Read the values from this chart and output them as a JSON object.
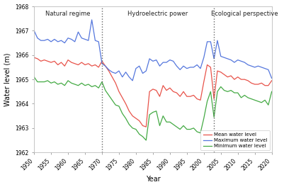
{
  "years": [
    1950,
    1951,
    1952,
    1953,
    1954,
    1955,
    1956,
    1957,
    1958,
    1959,
    1960,
    1961,
    1962,
    1963,
    1964,
    1965,
    1966,
    1967,
    1968,
    1969,
    1970,
    1971,
    1972,
    1973,
    1974,
    1975,
    1976,
    1977,
    1978,
    1979,
    1980,
    1981,
    1982,
    1983,
    1984,
    1985,
    1986,
    1987,
    1988,
    1989,
    1990,
    1991,
    1992,
    1993,
    1994,
    1995,
    1996,
    1997,
    1998,
    1999,
    2000,
    2001,
    2002,
    2003,
    2004,
    2005,
    2006,
    2007,
    2008,
    2009,
    2010,
    2011,
    2012,
    2013,
    2014,
    2015,
    2016,
    2017,
    2018,
    2019,
    2020
  ],
  "mean": [
    1965.9,
    1965.85,
    1965.75,
    1965.8,
    1965.75,
    1965.7,
    1965.75,
    1965.6,
    1965.7,
    1965.55,
    1965.8,
    1965.7,
    1965.65,
    1965.6,
    1965.7,
    1965.6,
    1965.65,
    1965.55,
    1965.6,
    1965.5,
    1965.75,
    1965.55,
    1965.35,
    1965.1,
    1964.85,
    1964.5,
    1964.25,
    1964.0,
    1963.7,
    1963.5,
    1963.4,
    1963.3,
    1963.1,
    1963.05,
    1964.5,
    1964.6,
    1964.55,
    1964.3,
    1964.75,
    1964.55,
    1964.65,
    1964.5,
    1964.45,
    1964.3,
    1964.5,
    1964.3,
    1964.3,
    1964.35,
    1964.2,
    1964.15,
    1964.9,
    1965.6,
    1965.5,
    1964.2,
    1965.35,
    1965.3,
    1965.2,
    1965.1,
    1965.15,
    1965.0,
    1965.1,
    1965.0,
    1965.0,
    1964.95,
    1964.85,
    1964.8,
    1964.8,
    1964.85,
    1964.75,
    1964.75,
    1964.95
  ],
  "maximum": [
    1967.0,
    1966.7,
    1966.6,
    1966.6,
    1966.65,
    1966.55,
    1966.65,
    1966.55,
    1966.6,
    1966.5,
    1966.7,
    1966.65,
    1966.55,
    1966.95,
    1966.7,
    1966.65,
    1966.6,
    1967.45,
    1966.6,
    1966.55,
    1965.65,
    1965.55,
    1965.4,
    1965.3,
    1965.25,
    1965.35,
    1965.1,
    1965.3,
    1965.1,
    1964.95,
    1965.45,
    1965.55,
    1965.25,
    1965.35,
    1965.85,
    1965.75,
    1965.8,
    1965.55,
    1965.7,
    1965.7,
    1965.8,
    1965.75,
    1965.55,
    1965.4,
    1965.55,
    1965.45,
    1965.5,
    1965.5,
    1965.6,
    1965.45,
    1965.9,
    1966.55,
    1966.55,
    1965.85,
    1966.6,
    1965.95,
    1965.9,
    1965.85,
    1965.8,
    1965.7,
    1965.8,
    1965.75,
    1965.7,
    1965.6,
    1965.55,
    1965.5,
    1965.55,
    1965.5,
    1965.45,
    1965.4,
    1965.05
  ],
  "minimum": [
    1965.1,
    1964.9,
    1964.9,
    1964.9,
    1964.95,
    1964.85,
    1964.9,
    1964.8,
    1964.85,
    1964.75,
    1964.95,
    1964.85,
    1964.8,
    1964.75,
    1964.85,
    1964.75,
    1964.8,
    1964.7,
    1964.75,
    1964.65,
    1964.9,
    1964.55,
    1964.35,
    1964.15,
    1963.95,
    1963.9,
    1963.6,
    1963.4,
    1963.15,
    1963.0,
    1962.95,
    1962.75,
    1962.65,
    1962.5,
    1963.55,
    1963.65,
    1963.7,
    1963.1,
    1963.5,
    1963.25,
    1963.25,
    1963.15,
    1963.05,
    1962.95,
    1963.1,
    1962.95,
    1962.95,
    1963.0,
    1962.85,
    1962.8,
    1963.4,
    1964.1,
    1964.5,
    1963.45,
    1964.5,
    1964.7,
    1964.55,
    1964.5,
    1964.55,
    1964.45,
    1964.45,
    1964.25,
    1964.35,
    1964.25,
    1964.2,
    1964.15,
    1964.1,
    1964.05,
    1964.15,
    1963.95,
    1964.5
  ],
  "color_mean": "#e8534a",
  "color_max": "#5577dd",
  "color_min": "#44aa44",
  "vline1": 1970,
  "vline2": 2003,
  "label1": "Natural regime",
  "label2": "Hydroelectric power",
  "label3": "Ecological perspective",
  "xlabel": "Year",
  "ylabel": "Water level (m)",
  "ylim": [
    1962,
    1968
  ],
  "xlim": [
    1950,
    2020
  ],
  "yticks": [
    1962,
    1963,
    1964,
    1965,
    1966,
    1967,
    1968
  ],
  "xticks": [
    1950,
    1955,
    1960,
    1965,
    1970,
    1975,
    1980,
    1985,
    1990,
    1995,
    2000,
    2005,
    2010,
    2015,
    2020
  ],
  "legend_mean": "Mean water level",
  "legend_max": "Maximum water level",
  "legend_min": "Minimum water level",
  "background": "#ffffff"
}
